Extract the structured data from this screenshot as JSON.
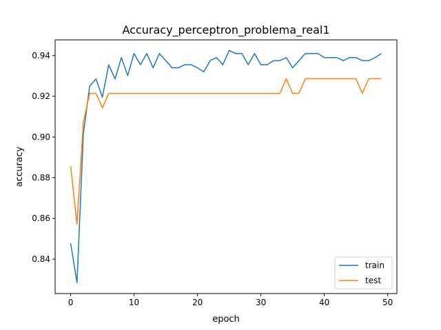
{
  "chart_data": {
    "type": "line",
    "title": "Accuracy_perceptron_problema_real1",
    "xlabel": "epoch",
    "ylabel": "accuracy",
    "xlim": [
      -2.45,
      51.45
    ],
    "ylim": [
      0.8231,
      0.9477
    ],
    "xticks": [
      0,
      10,
      20,
      30,
      40,
      50
    ],
    "yticks": [
      0.84,
      0.86,
      0.88,
      0.9,
      0.92,
      0.94
    ],
    "ytick_labels": [
      "0.84",
      "0.86",
      "0.88",
      "0.90",
      "0.92",
      "0.94"
    ],
    "grid": false,
    "legend_position": "lower right",
    "x": [
      0,
      1,
      2,
      3,
      4,
      5,
      6,
      7,
      8,
      9,
      10,
      11,
      12,
      13,
      14,
      15,
      16,
      17,
      18,
      19,
      20,
      21,
      22,
      23,
      24,
      25,
      26,
      27,
      28,
      29,
      30,
      31,
      32,
      33,
      34,
      35,
      36,
      37,
      38,
      39,
      40,
      41,
      42,
      43,
      44,
      45,
      46,
      47,
      48,
      49
    ],
    "series": [
      {
        "name": "train",
        "color": "#1f77b4",
        "values": [
          0.8478,
          0.8284,
          0.9014,
          0.925,
          0.9285,
          0.9195,
          0.9355,
          0.9285,
          0.939,
          0.9302,
          0.941,
          0.9355,
          0.941,
          0.934,
          0.941,
          0.9375,
          0.934,
          0.934,
          0.9355,
          0.9355,
          0.934,
          0.932,
          0.9375,
          0.939,
          0.9355,
          0.9425,
          0.941,
          0.941,
          0.9355,
          0.941,
          0.9355,
          0.9355,
          0.9375,
          0.9375,
          0.939,
          0.934,
          0.9375,
          0.941,
          0.941,
          0.941,
          0.939,
          0.939,
          0.939,
          0.9375,
          0.939,
          0.939,
          0.9375,
          0.9375,
          0.939,
          0.941
        ]
      },
      {
        "name": "test",
        "color": "#ff7f0e",
        "values": [
          0.8857,
          0.8571,
          0.9071,
          0.9214,
          0.9214,
          0.9143,
          0.9214,
          0.9214,
          0.9214,
          0.9214,
          0.9214,
          0.9214,
          0.9214,
          0.9214,
          0.9214,
          0.9214,
          0.9214,
          0.9214,
          0.9214,
          0.9214,
          0.9214,
          0.9214,
          0.9214,
          0.9214,
          0.9214,
          0.9214,
          0.9214,
          0.9214,
          0.9214,
          0.9214,
          0.9214,
          0.9214,
          0.9214,
          0.9214,
          0.9286,
          0.9214,
          0.9214,
          0.9286,
          0.9286,
          0.9286,
          0.9286,
          0.9286,
          0.9286,
          0.9286,
          0.9286,
          0.9286,
          0.9214,
          0.9286,
          0.9286,
          0.9286
        ]
      }
    ]
  }
}
